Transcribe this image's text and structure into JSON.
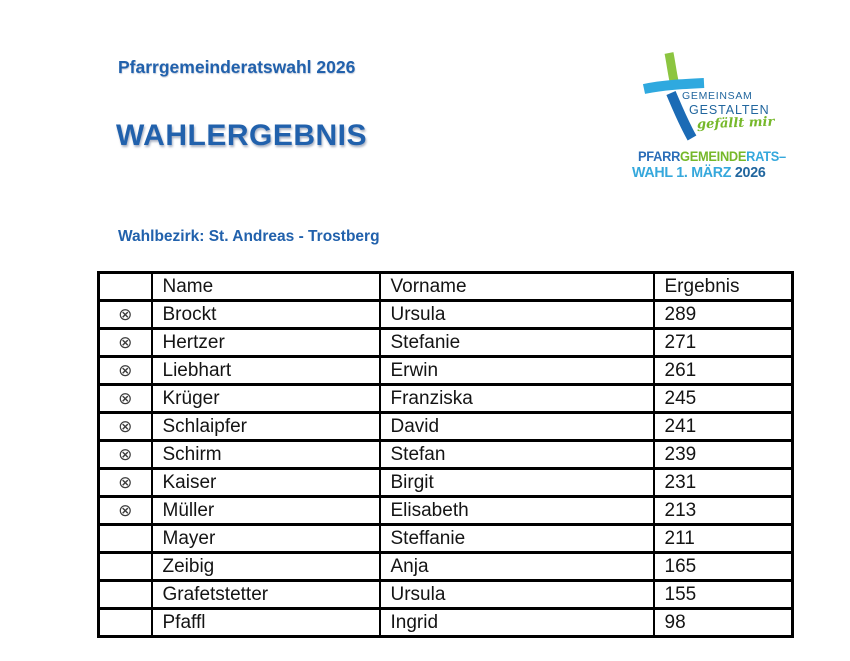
{
  "page": {
    "title": "Pfarrgemeinderatswahl 2026",
    "heading": "WAHLERGEBNIS",
    "district_label": "Wahlbezirk: St. Andreas - Trostberg",
    "heading_color": "#2161ac",
    "background": "#ffffff"
  },
  "logo": {
    "gemeinsam": "GEMEINSAM",
    "gestalten": "GESTALTEN",
    "tagline": "gefällt mir",
    "campaign_line1": [
      {
        "text": "PFARR",
        "color": "#2a6db8"
      },
      {
        "text": "GEMEINDE",
        "color": "#76b82a"
      },
      {
        "text": "RATS–",
        "color": "#35a8dc"
      }
    ],
    "campaign_line2": [
      {
        "text": "WAHL 1. MÄRZ ",
        "color": "#35a8dc"
      },
      {
        "text": "2026",
        "color": "#21669e"
      }
    ],
    "colors": {
      "cross_green": "#8cc540",
      "cross_light_blue": "#2fa9df",
      "cross_dark_blue": "#1c6bb5",
      "text_blue": "#21669e",
      "tagline_green": "#76b82a"
    }
  },
  "table": {
    "headers": {
      "elected": "",
      "name": "Name",
      "vorname": "Vorname",
      "ergebnis": "Ergebnis"
    },
    "elected_symbol": "⊗",
    "rows": [
      {
        "elected": true,
        "name": "Brockt",
        "vorname": "Ursula",
        "ergebnis": "289"
      },
      {
        "elected": true,
        "name": "Hertzer",
        "vorname": "Stefanie",
        "ergebnis": "271"
      },
      {
        "elected": true,
        "name": "Liebhart",
        "vorname": "Erwin",
        "ergebnis": "261"
      },
      {
        "elected": true,
        "name": "Krüger",
        "vorname": "Franziska",
        "ergebnis": "245"
      },
      {
        "elected": true,
        "name": "Schlaipfer",
        "vorname": "David",
        "ergebnis": "241"
      },
      {
        "elected": true,
        "name": "Schirm",
        "vorname": "Stefan",
        "ergebnis": "239"
      },
      {
        "elected": true,
        "name": "Kaiser",
        "vorname": "Birgit",
        "ergebnis": "231"
      },
      {
        "elected": true,
        "name": "Müller",
        "vorname": "Elisabeth",
        "ergebnis": "213"
      },
      {
        "elected": false,
        "name": "Mayer",
        "vorname": "Steffanie",
        "ergebnis": "211"
      },
      {
        "elected": false,
        "name": "Zeibig",
        "vorname": "Anja",
        "ergebnis": "165"
      },
      {
        "elected": false,
        "name": "Grafetstetter",
        "vorname": "Ursula",
        "ergebnis": "155"
      },
      {
        "elected": false,
        "name": "Pfaffl",
        "vorname": "Ingrid",
        "ergebnis": "98"
      }
    ]
  }
}
